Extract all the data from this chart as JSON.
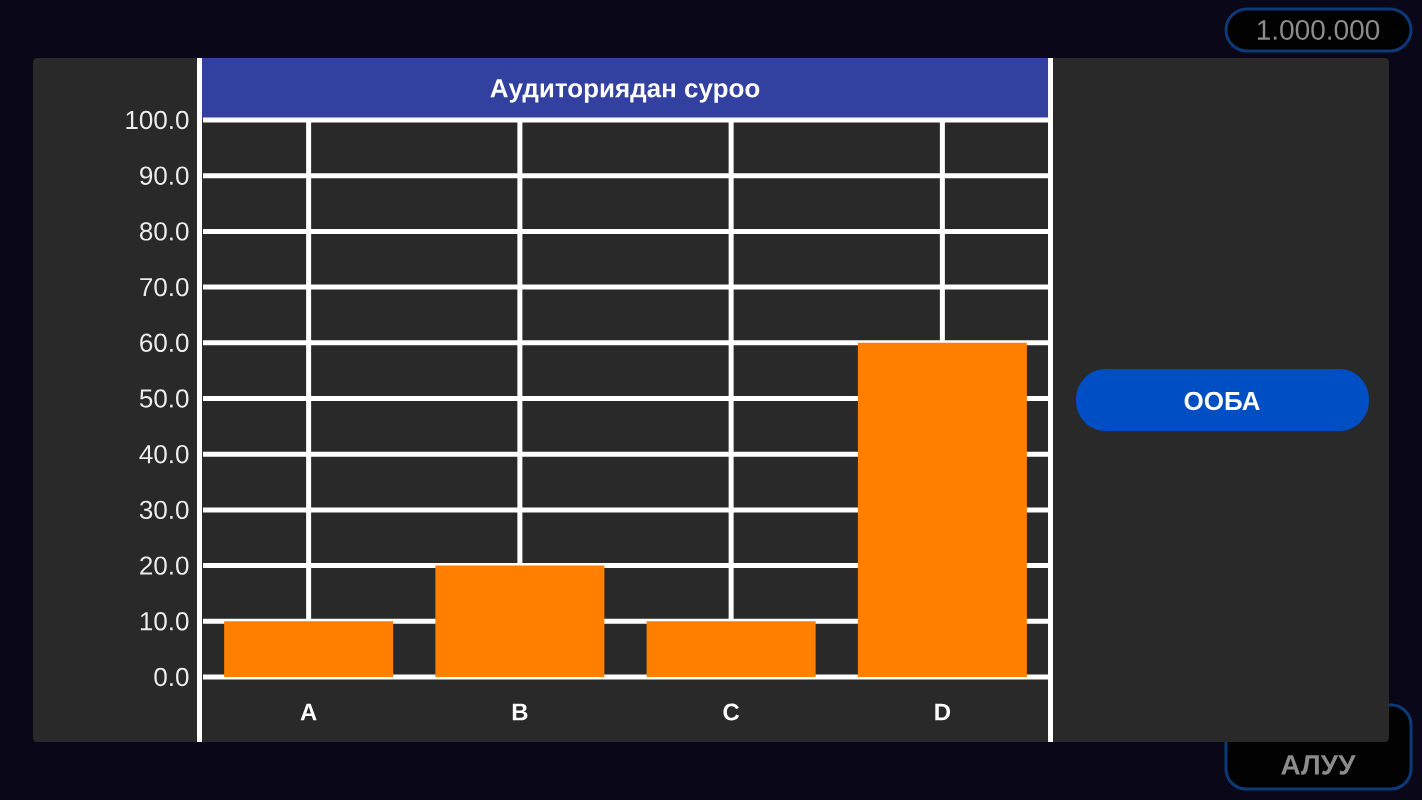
{
  "chart_data": {
    "type": "bar",
    "title": "Аудиториядан суроо",
    "categories": [
      "A",
      "B",
      "C",
      "D"
    ],
    "values": [
      10,
      20,
      10,
      60
    ],
    "color": "#ff8000",
    "ylim": [
      0,
      100
    ],
    "yticks": [
      {
        "value": 0,
        "label": "0.0"
      },
      {
        "value": 10,
        "label": "10.0"
      },
      {
        "value": 20,
        "label": "20.0"
      },
      {
        "value": 30,
        "label": "30.0"
      },
      {
        "value": 40,
        "label": "40.0"
      },
      {
        "value": 50,
        "label": "50.0"
      },
      {
        "value": 60,
        "label": "60.0"
      },
      {
        "value": 70,
        "label": "70.0"
      },
      {
        "value": 80,
        "label": "80.0"
      },
      {
        "value": 90,
        "label": "90.0"
      },
      {
        "value": 100,
        "label": "100.0"
      }
    ],
    "grid": true,
    "annotations": [
      "ООБА",
      "1.000.000",
      "АЛУУ"
    ]
  }
}
